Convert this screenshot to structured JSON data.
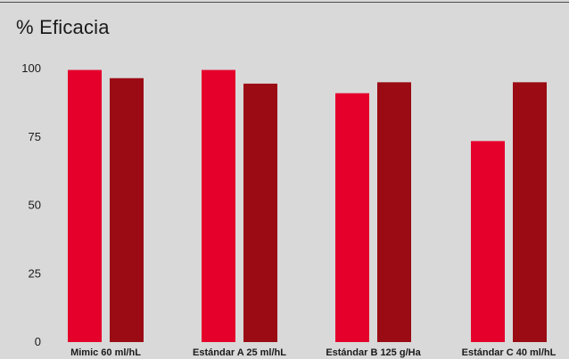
{
  "chart_data": {
    "type": "bar",
    "title": "% Eficacia",
    "categories": [
      "Mimic 60 ml/hL",
      "Estándar A 25 ml/hL",
      "Estándar B 125 g/Ha",
      "Estándar C 40 ml/hL"
    ],
    "series": [
      {
        "values": [
          99.5,
          99.5,
          91,
          73.5
        ],
        "color": "#e4002b"
      },
      {
        "values": [
          96.5,
          94.5,
          95,
          95
        ],
        "color": "#9a0b14"
      }
    ],
    "yticks": [
      0,
      25,
      50,
      75,
      100
    ],
    "ylim": [
      0,
      100
    ],
    "grid": false,
    "xlabel": "",
    "ylabel": ""
  }
}
